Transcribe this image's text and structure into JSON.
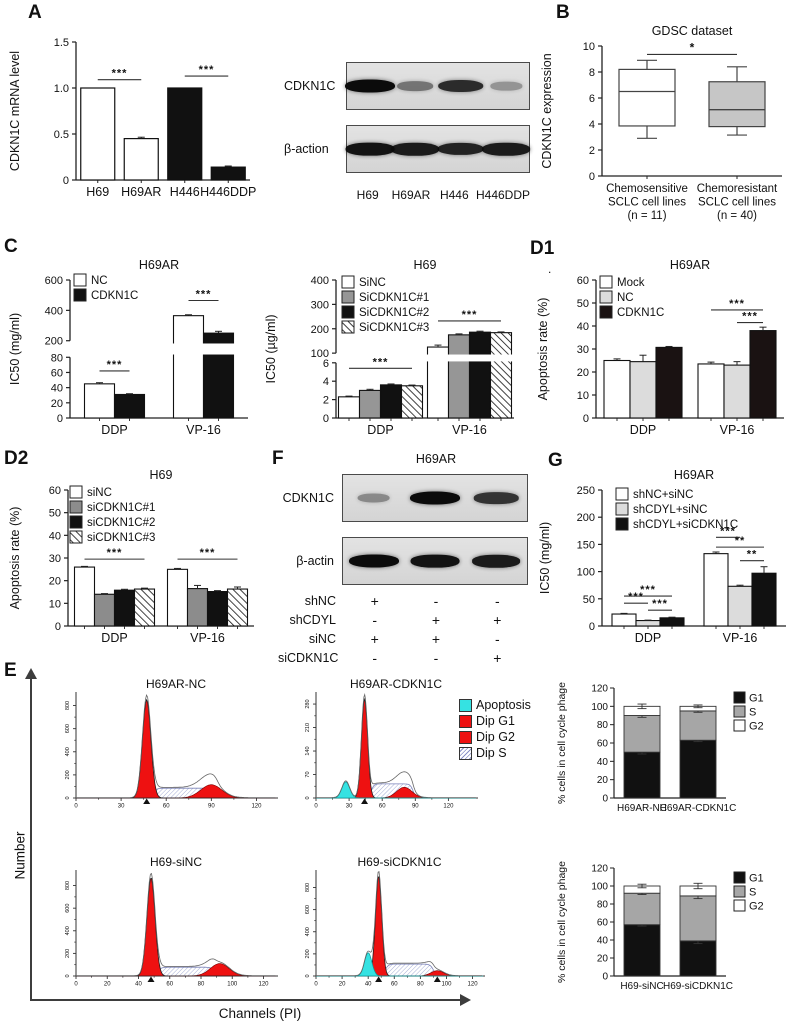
{
  "panel_labels": {
    "A": "A",
    "B": "B",
    "C": "C",
    "D1": "D1",
    "D2": "D2",
    "E": "E",
    "F": "F",
    "G": "G"
  },
  "misc": {
    "stray_dot": "."
  },
  "e_axis": {
    "ylabel": "Number",
    "xlabel": "Channels (PI)"
  },
  "flow_legend": [
    {
      "label": "Apoptosis",
      "swatch": "#35e2e2"
    },
    {
      "label": "Dip G1",
      "swatch": "#ee1111"
    },
    {
      "label": "Dip G2",
      "swatch": "#ee1111"
    },
    {
      "label": "Dip S",
      "swatch": "hatch"
    }
  ],
  "western_blots": {
    "A": {
      "rows": [
        {
          "label": "CDKN1C",
          "bands": [
            1.0,
            0.35,
            0.8,
            0.15
          ]
        },
        {
          "label": "β-action",
          "bands": [
            0.95,
            0.9,
            0.85,
            0.9
          ]
        }
      ],
      "lanes": [
        "H69",
        "H69AR",
        "H446",
        "H446DDP"
      ]
    },
    "F": {
      "title": "H69AR",
      "rows": [
        {
          "label": "CDKN1C",
          "bands": [
            0.22,
            1.0,
            0.75
          ]
        },
        {
          "label": "β-actin",
          "bands": [
            1.0,
            0.95,
            0.9
          ]
        }
      ],
      "conditions": [
        {
          "label": "shNC",
          "values": [
            "+",
            "-",
            "-"
          ]
        },
        {
          "label": "shCDYL",
          "values": [
            "-",
            "+",
            "+"
          ]
        },
        {
          "label": "siNC",
          "values": [
            "+",
            "+",
            "-"
          ]
        },
        {
          "label": "siCDKN1C",
          "values": [
            "-",
            "-",
            "+"
          ]
        }
      ]
    }
  },
  "chart_data": [
    {
      "id": "A",
      "type": "bars",
      "title": "",
      "ylabel": "CDKN1C mRNA level",
      "segments": [
        {
          "min": 0,
          "max": 1.5,
          "f0": 0,
          "f1": 1,
          "ticks": [
            0,
            0.5,
            1,
            1.5
          ],
          "tick_labels": [
            "0",
            "0.5",
            "1.0",
            "1.5"
          ]
        }
      ],
      "bars": [
        {
          "label": "H69",
          "value": 1.0,
          "err": 0,
          "fill": "#ffffff"
        },
        {
          "label": "H69AR",
          "value": 0.45,
          "err": 0.015,
          "fill": "#ffffff"
        },
        {
          "label": "H446",
          "value": 1.0,
          "err": 0,
          "fill": "#111111"
        },
        {
          "label": "H446DDP",
          "value": 0.14,
          "err": 0.012,
          "fill": "#111111"
        }
      ],
      "sig": [
        {
          "a": 0,
          "b": 1,
          "y": 1.09,
          "label": "***"
        },
        {
          "a": 2,
          "b": 3,
          "y": 1.13,
          "label": "***"
        }
      ]
    },
    {
      "id": "B",
      "type": "box",
      "title": "GDSC dataset",
      "ylabel": "CDKN1C expression",
      "ymax": 10,
      "yticks": [
        0,
        2,
        4,
        6,
        8,
        10
      ],
      "boxes": [
        {
          "label": [
            "Chemosensitive",
            "SCLC cell lines",
            "(n = 11)"
          ],
          "min": 2.9,
          "q1": 3.85,
          "median": 6.5,
          "q3": 8.2,
          "max": 8.9,
          "fill": "#ffffff"
        },
        {
          "label": [
            "Chemoresistant",
            "SCLC cell lines",
            "(n = 40)"
          ],
          "min": 3.15,
          "q1": 3.8,
          "median": 5.1,
          "q3": 7.25,
          "max": 8.4,
          "fill": "#c6c6c6"
        }
      ],
      "sig": [
        {
          "a": 0,
          "b": 1,
          "y": 9.35,
          "label": "*"
        }
      ]
    },
    {
      "id": "C1",
      "type": "gbar",
      "title": "H69AR",
      "ylabel": "IC50 (mg/ml)",
      "segments": [
        {
          "min": 0,
          "max": 80,
          "f0": 0,
          "f1": 0.44,
          "ticks": [
            0,
            20,
            40,
            60,
            80
          ]
        },
        {
          "min": 200,
          "max": 600,
          "f0": 0.56,
          "f1": 1,
          "ticks": [
            200,
            400,
            600
          ]
        }
      ],
      "break_band": [
        0.46,
        0.54
      ],
      "categories": [
        "DDP",
        "VP-16"
      ],
      "series": [
        {
          "name": "NC",
          "fill": "#ffffff"
        },
        {
          "name": "CDKN1C",
          "fill": "#111111"
        }
      ],
      "values": [
        [
          45,
          31
        ],
        [
          365,
          250
        ]
      ],
      "errors": [
        [
          1.5,
          1
        ],
        [
          6,
          12
        ]
      ],
      "sig": [
        {
          "cat": 0,
          "a": 0,
          "b": 1,
          "y": 62,
          "label": "***"
        },
        {
          "cat": 1,
          "a": 0,
          "b": 1,
          "y": 465,
          "label": "***"
        }
      ]
    },
    {
      "id": "C2",
      "type": "gbar",
      "title": "H69",
      "ylabel": "IC50 (µg/ml)",
      "segments": [
        {
          "min": 0,
          "max": 6,
          "f0": 0,
          "f1": 0.4,
          "ticks": [
            0,
            2,
            4,
            6
          ]
        },
        {
          "min": 100,
          "max": 400,
          "f0": 0.47,
          "f1": 1,
          "ticks": [
            100,
            200,
            300,
            400
          ]
        }
      ],
      "break_band": [
        0.41,
        0.46
      ],
      "categories": [
        "DDP",
        "VP-16"
      ],
      "series": [
        {
          "name": "SiNC",
          "fill": "#ffffff"
        },
        {
          "name": "SiCDKN1C#1",
          "fill": "#969696"
        },
        {
          "name": "SiCDKN1C#2",
          "fill": "#111111"
        },
        {
          "name": "SiCDKN1C#3",
          "fill": "hatch"
        }
      ],
      "values": [
        [
          2.3,
          3.0,
          3.6,
          3.5
        ],
        [
          125,
          175,
          186,
          184
        ]
      ],
      "errors": [
        [
          0.08,
          0.12,
          0.1,
          0.08
        ],
        [
          8,
          4,
          4,
          3
        ]
      ],
      "sig": [
        {
          "cat": 0,
          "a": 0,
          "b": 3,
          "y": 5.4,
          "label": "***"
        },
        {
          "cat": 1,
          "a": 0,
          "b": 3,
          "y": 232,
          "label": "***"
        }
      ]
    },
    {
      "id": "D1",
      "type": "gbar",
      "title": "H69AR",
      "ylabel": "Apoptosis rate (%)",
      "segments": [
        {
          "min": 0,
          "max": 60,
          "f0": 0,
          "f1": 1,
          "ticks": [
            0,
            10,
            20,
            30,
            40,
            50,
            60
          ]
        }
      ],
      "categories": [
        "DDP",
        "VP-16"
      ],
      "series": [
        {
          "name": "Mock",
          "fill": "#ffffff"
        },
        {
          "name": "NC",
          "fill": "#dcdcdc"
        },
        {
          "name": "CDKN1C",
          "fill": "#1a1212"
        }
      ],
      "values": [
        [
          25,
          24.5,
          30.7
        ],
        [
          23.5,
          23,
          38
        ]
      ],
      "errors": [
        [
          0.7,
          2.8,
          0.4
        ],
        [
          0.8,
          1.5,
          1.5
        ]
      ],
      "sig": [
        {
          "cat": 1,
          "a": 0,
          "b": 2,
          "y": 47,
          "label": "***"
        },
        {
          "cat": 1,
          "a": 1,
          "b": 2,
          "y": 41.5,
          "label": "***"
        }
      ]
    },
    {
      "id": "D2",
      "type": "gbar",
      "title": "H69",
      "ylabel": "Apoptosis rate (%)",
      "segments": [
        {
          "min": 0,
          "max": 60,
          "f0": 0,
          "f1": 1,
          "ticks": [
            0,
            10,
            20,
            30,
            40,
            50,
            60
          ]
        }
      ],
      "categories": [
        "DDP",
        "VP-16"
      ],
      "series": [
        {
          "name": "siNC",
          "fill": "#ffffff"
        },
        {
          "name": "siCDKN1C#1",
          "fill": "#8c8c8c"
        },
        {
          "name": "siCDKN1C#2",
          "fill": "#111111"
        },
        {
          "name": "siCDKN1C#3",
          "fill": "hatch"
        }
      ],
      "values": [
        [
          26,
          14,
          15.8,
          16.3
        ],
        [
          25,
          16.5,
          15.2,
          16.3
        ]
      ],
      "errors": [
        [
          0.3,
          0.3,
          0.4,
          0.4
        ],
        [
          0.4,
          1.4,
          0.4,
          0.9
        ]
      ],
      "sig": [
        {
          "cat": 0,
          "a": 0,
          "b": 3,
          "y": 29.5,
          "label": "***"
        },
        {
          "cat": 1,
          "a": 0,
          "b": 3,
          "y": 29.5,
          "label": "***"
        }
      ]
    },
    {
      "id": "G",
      "type": "gbar",
      "title": "H69AR",
      "ylabel": "IC50 (mg/ml)",
      "segments": [
        {
          "min": 0,
          "max": 250,
          "f0": 0,
          "f1": 1,
          "ticks": [
            0,
            50,
            100,
            150,
            200,
            250
          ]
        }
      ],
      "categories": [
        "DDP",
        "VP-16"
      ],
      "series": [
        {
          "name": "shNC+siNC",
          "fill": "#ffffff"
        },
        {
          "name": "shCDYL+siNC",
          "fill": "#dcdcdc"
        },
        {
          "name": "shCDYL+siCDKN1C",
          "fill": "#111111"
        }
      ],
      "values": [
        [
          22,
          10,
          15
        ],
        [
          133,
          73,
          97
        ]
      ],
      "errors": [
        [
          1.2,
          0.8,
          1.2
        ],
        [
          3,
          2,
          12
        ]
      ],
      "sig": [
        {
          "cat": 0,
          "a": 0,
          "b": 2,
          "y": 55,
          "label": "***"
        },
        {
          "cat": 0,
          "a": 0,
          "b": 1,
          "y": 42,
          "label": "***"
        },
        {
          "cat": 0,
          "a": 1,
          "b": 2,
          "y": 29,
          "label": "***"
        },
        {
          "cat": 1,
          "a": 0,
          "b": 1,
          "y": 163,
          "label": "***"
        },
        {
          "cat": 1,
          "a": 0,
          "b": 2,
          "y": 145,
          "label": "**"
        },
        {
          "cat": 1,
          "a": 1,
          "b": 2,
          "y": 120,
          "label": "**"
        }
      ]
    },
    {
      "id": "E1",
      "type": "flow",
      "title": "H69AR-NC",
      "ymax": 900,
      "yticks": [
        0,
        200,
        400,
        600,
        800
      ],
      "xmax": 133,
      "xticks": [
        0,
        30,
        60,
        90,
        120
      ],
      "apoptosis": null,
      "g1": {
        "x": 47,
        "y": 850,
        "w": 2.8
      },
      "g2": {
        "x": 90,
        "y": 115,
        "w": 7
      },
      "s": {
        "from": 51,
        "to": 94,
        "level": 85
      },
      "markers": [
        47
      ]
    },
    {
      "id": "E2",
      "type": "flow",
      "title": "H69AR-CDKN1C",
      "ymax": 310,
      "yticks": [
        0,
        70,
        140,
        210,
        280
      ],
      "xmax": 145,
      "xticks": [
        0,
        30,
        60,
        90,
        120
      ],
      "apoptosis": {
        "x": 27,
        "y": 48,
        "w": 3.5
      },
      "g1": {
        "x": 44,
        "y": 295,
        "w": 2.8
      },
      "g2": {
        "x": 80,
        "y": 32,
        "w": 7
      },
      "s": {
        "from": 50,
        "to": 88,
        "level": 42
      },
      "markers": [
        44
      ]
    },
    {
      "id": "E3",
      "type": "flow",
      "title": "H69-siNC",
      "ymax": 920,
      "yticks": [
        0,
        200,
        400,
        600,
        800
      ],
      "xmax": 128,
      "xticks": [
        0,
        20,
        40,
        60,
        80,
        100,
        120
      ],
      "apoptosis": null,
      "g1": {
        "x": 48,
        "y": 870,
        "w": 2.6
      },
      "g2": {
        "x": 92,
        "y": 110,
        "w": 6
      },
      "s": {
        "from": 52,
        "to": 89,
        "level": 78
      },
      "markers": [
        48
      ]
    },
    {
      "id": "E4",
      "type": "flow",
      "title": "H69-siCDKN1C",
      "ymax": 940,
      "yticks": [
        0,
        200,
        400,
        600,
        800
      ],
      "xmax": 128,
      "xticks": [
        0,
        20,
        40,
        60,
        80,
        100,
        120
      ],
      "apoptosis": {
        "x": 40,
        "y": 210,
        "w": 2.8
      },
      "g1": {
        "x": 48,
        "y": 905,
        "w": 2.4
      },
      "g2": {
        "x": 93,
        "y": 48,
        "w": 5
      },
      "s": {
        "from": 53,
        "to": 90,
        "level": 108
      },
      "markers": [
        48,
        93
      ]
    },
    {
      "id": "S1",
      "type": "stack",
      "ylabel": "% cells in cell cycle phage",
      "ymax": 120,
      "yticks": [
        0,
        20,
        40,
        60,
        80,
        100,
        120
      ],
      "categories": [
        "H69AR-NC",
        "H69AR-CDKN1C"
      ],
      "series": [
        {
          "name": "G1",
          "fill": "#111111"
        },
        {
          "name": "S",
          "fill": "#a6a6a6"
        },
        {
          "name": "G2",
          "fill": "#ffffff"
        }
      ],
      "values": [
        [
          50,
          40,
          10
        ],
        [
          63,
          32,
          5
        ]
      ],
      "errors": [
        [
          2,
          2,
          2.5
        ],
        [
          1.5,
          1.5,
          1.5
        ]
      ]
    },
    {
      "id": "S2",
      "type": "stack",
      "ylabel": "% cells in cell cycle phage",
      "ymax": 120,
      "yticks": [
        0,
        20,
        40,
        60,
        80,
        100,
        120
      ],
      "categories": [
        "H69-siNC",
        "H69-siCDKN1C"
      ],
      "series": [
        {
          "name": "G1",
          "fill": "#111111"
        },
        {
          "name": "S",
          "fill": "#a6a6a6"
        },
        {
          "name": "G2",
          "fill": "#ffffff"
        }
      ],
      "values": [
        [
          57,
          35,
          8
        ],
        [
          39,
          50,
          11
        ]
      ],
      "errors": [
        [
          1.5,
          1.5,
          2
        ],
        [
          3,
          3,
          3
        ]
      ]
    }
  ]
}
